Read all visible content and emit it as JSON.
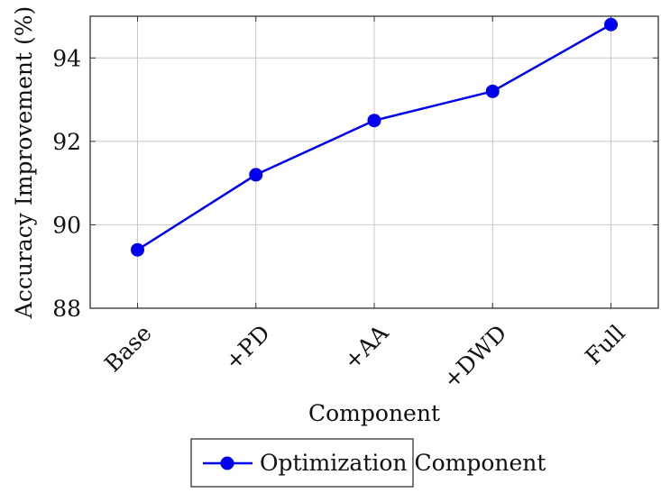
{
  "chart_data": {
    "type": "line",
    "categories": [
      "Base",
      "+PD",
      "+AA",
      "+DWD",
      "Full"
    ],
    "series": [
      {
        "name": "Optimization Component",
        "values": [
          89.4,
          91.2,
          92.5,
          93.2,
          94.8
        ],
        "color": "#0000ee",
        "marker": "circle"
      }
    ],
    "xlabel": "Component",
    "ylabel": "Accuracy Improvement (%)",
    "ylim": [
      88,
      95
    ],
    "yticks": [
      88,
      90,
      92,
      94
    ],
    "grid": true,
    "legend": "bottom-center, below axes"
  }
}
